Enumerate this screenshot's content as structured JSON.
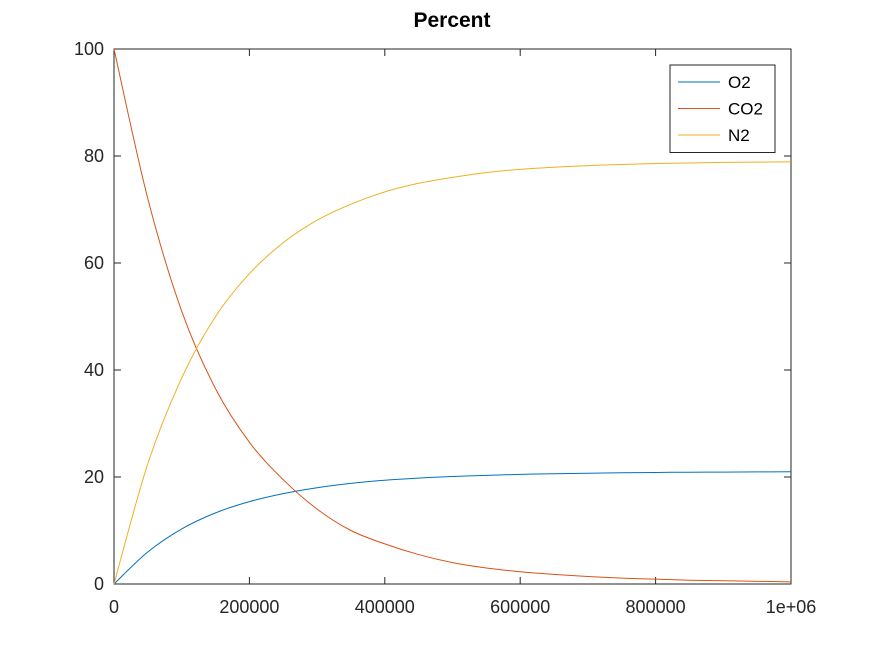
{
  "chart_data": {
    "type": "line",
    "title": "Percent",
    "xlabel": "",
    "ylabel": "",
    "xlim": [
      0,
      1000000
    ],
    "ylim": [
      0,
      100
    ],
    "x_ticks": [
      0,
      200000,
      400000,
      600000,
      800000,
      1000000
    ],
    "x_tick_labels": [
      "0",
      "200000",
      "400000",
      "600000",
      "800000",
      "1e+06"
    ],
    "y_ticks": [
      0,
      20,
      40,
      60,
      80,
      100
    ],
    "y_tick_labels": [
      "0",
      "20",
      "40",
      "60",
      "80",
      "100"
    ],
    "grid": false,
    "legend_position": "top-right",
    "x": [
      0,
      50000,
      100000,
      150000,
      200000,
      250000,
      300000,
      350000,
      400000,
      450000,
      500000,
      550000,
      600000,
      650000,
      700000,
      750000,
      800000,
      850000,
      900000,
      950000,
      1000000
    ],
    "series": [
      {
        "name": "O2",
        "color": "#0072bd",
        "values": [
          0,
          6.0,
          10.3,
          13.3,
          15.4,
          16.9,
          18.0,
          18.8,
          19.4,
          19.8,
          20.1,
          20.3,
          20.5,
          20.6,
          20.7,
          20.8,
          20.85,
          20.9,
          20.92,
          20.95,
          20.97
        ]
      },
      {
        "name": "CO2",
        "color": "#d95319",
        "values": [
          100,
          72.0,
          51.0,
          36.5,
          26.5,
          19.5,
          14.0,
          10.0,
          7.5,
          5.5,
          4.0,
          3.0,
          2.3,
          1.8,
          1.4,
          1.1,
          0.9,
          0.7,
          0.6,
          0.5,
          0.4
        ]
      },
      {
        "name": "N2",
        "color": "#edb120",
        "values": [
          0,
          22.5,
          38.5,
          50.0,
          58.0,
          63.8,
          68.0,
          71.0,
          73.3,
          74.9,
          76.0,
          76.9,
          77.5,
          77.9,
          78.2,
          78.4,
          78.6,
          78.7,
          78.8,
          78.85,
          78.9
        ]
      }
    ]
  }
}
